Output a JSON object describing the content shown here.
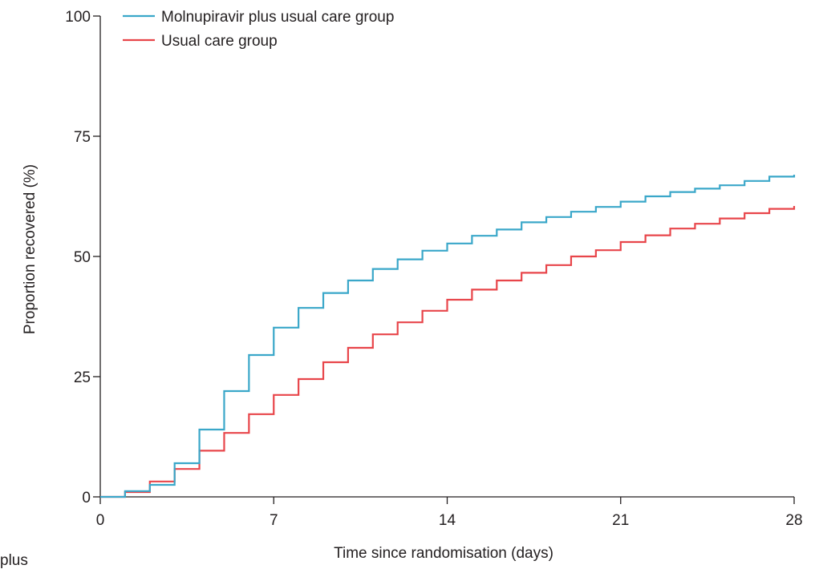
{
  "chart_data": {
    "type": "line",
    "step": true,
    "title": "",
    "xlabel": "Time since randomisation (days)",
    "ylabel": "Proportion recovered (%)",
    "xlim": [
      0,
      28
    ],
    "ylim": [
      0,
      100
    ],
    "xticks": [
      0,
      7,
      14,
      21,
      28
    ],
    "yticks": [
      0,
      25,
      50,
      75,
      100
    ],
    "grid": false,
    "legend_position": "top-left",
    "series": [
      {
        "name": "Molnupiravir plus usual care group",
        "color": "#3aa7c9",
        "x": [
          0,
          1,
          2,
          3,
          4,
          5,
          6,
          7,
          8,
          9,
          10,
          11,
          12,
          13,
          14,
          15,
          16,
          17,
          18,
          19,
          20,
          21,
          22,
          23,
          24,
          25,
          26,
          27,
          28
        ],
        "y": [
          0,
          1.2,
          2.5,
          7.0,
          14.0,
          22.0,
          29.5,
          35.2,
          39.3,
          42.4,
          45.0,
          47.4,
          49.4,
          51.2,
          52.7,
          54.3,
          55.6,
          57.1,
          58.2,
          59.3,
          60.3,
          61.4,
          62.5,
          63.4,
          64.1,
          64.8,
          65.7,
          66.6,
          67.0
        ]
      },
      {
        "name": "Usual care group",
        "color": "#e8454a",
        "x": [
          0,
          1,
          2,
          3,
          4,
          5,
          6,
          7,
          8,
          9,
          10,
          11,
          12,
          13,
          14,
          15,
          16,
          17,
          18,
          19,
          20,
          21,
          22,
          23,
          24,
          25,
          26,
          27,
          28
        ],
        "y": [
          0,
          1.0,
          3.2,
          5.8,
          9.6,
          13.3,
          17.2,
          21.2,
          24.5,
          28.0,
          31.0,
          33.8,
          36.3,
          38.7,
          41.0,
          43.1,
          45.0,
          46.6,
          48.2,
          50.0,
          51.3,
          53.0,
          54.4,
          55.8,
          56.8,
          57.9,
          59.0,
          59.9,
          60.5
        ]
      }
    ]
  },
  "cutoff_text": "plus"
}
